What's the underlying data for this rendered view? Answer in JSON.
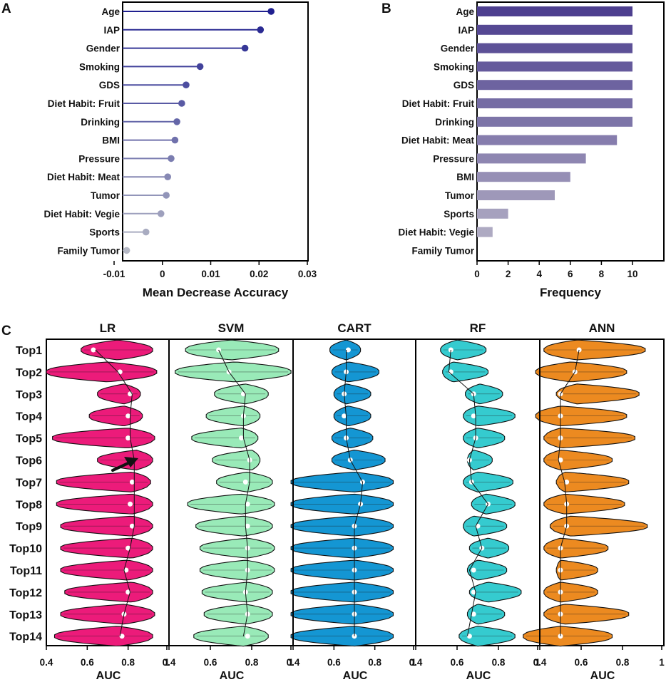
{
  "panel_labels": {
    "a": "A",
    "b": "B",
    "c": "C"
  },
  "chart_data": [
    {
      "type": "lollipop",
      "panel": "A",
      "categories": [
        "Age",
        "IAP",
        "Gender",
        "Smoking",
        "GDS",
        "Diet Habit: Fruit",
        "Drinking",
        "BMI",
        "Pressure",
        "Diet Habit: Meat",
        "Tumor",
        "Diet Habit: Vegie",
        "Sports",
        "Family Tumor"
      ],
      "values": [
        0.0225,
        0.0203,
        0.0171,
        0.0078,
        0.0049,
        0.004,
        0.003,
        0.0026,
        0.0018,
        0.0011,
        0.0008,
        -0.0003,
        -0.0034,
        -0.0074
      ],
      "xlabel": "Mean Decrease Accuracy",
      "xlim": [
        -0.01,
        0.03
      ],
      "xticks": [
        -0.01,
        0,
        0.01,
        0.02,
        0.03
      ],
      "xtick_labels": [
        "-0.01",
        "0",
        "0.01",
        "0.02",
        "0.03"
      ],
      "color_start": "#1f1f8f",
      "color_end": "#b5b8c5"
    },
    {
      "type": "bar",
      "panel": "B",
      "orientation": "horizontal",
      "categories": [
        "Age",
        "IAP",
        "Gender",
        "Smoking",
        "GDS",
        "Diet Habit: Fruit",
        "Drinking",
        "Diet Habit: Meat",
        "Pressure",
        "BMI",
        "Tumor",
        "Sports",
        "Diet Habit: Vegie",
        "Family Tumor"
      ],
      "values": [
        10,
        10,
        10,
        10,
        10,
        10,
        10,
        9,
        7,
        6,
        5,
        2,
        1,
        0
      ],
      "xlabel": "Frequency",
      "xlim": [
        0,
        10
      ],
      "xticks": [
        0,
        2,
        4,
        6,
        8,
        10
      ],
      "xtick_labels": [
        "0",
        "2",
        "4",
        "6",
        "8",
        "10"
      ],
      "color_start": "#4d3f8f",
      "color_end": "#b6b3c6"
    },
    {
      "type": "violin",
      "panel": "C",
      "rows": [
        "Top1",
        "Top2",
        "Top3",
        "Top4",
        "Top5",
        "Top6",
        "Top7",
        "Top8",
        "Top9",
        "Top10",
        "Top11",
        "Top12",
        "Top13",
        "Top14"
      ],
      "xlabel": "AUC",
      "xlim": [
        0.4,
        1.0
      ],
      "xticks": [
        0.4,
        0.6,
        0.8,
        1.0
      ],
      "xtick_labels": [
        "0.4",
        "0.6",
        "0.8",
        "1"
      ],
      "models": [
        {
          "name": "LR",
          "color": "#ec1b7a",
          "min": [
            0.57,
            0.4,
            0.65,
            0.61,
            0.43,
            0.65,
            0.45,
            0.45,
            0.47,
            0.47,
            0.47,
            0.49,
            0.47,
            0.44
          ],
          "max": [
            0.92,
            0.94,
            0.86,
            0.87,
            0.93,
            0.92,
            0.91,
            0.92,
            0.92,
            0.92,
            0.92,
            0.92,
            0.93,
            0.92
          ],
          "mode": [
            0.75,
            0.7,
            0.78,
            0.78,
            0.8,
            0.84,
            0.82,
            0.82,
            0.82,
            0.82,
            0.8,
            0.82,
            0.78,
            0.75
          ],
          "median": [
            0.63,
            0.76,
            0.81,
            0.8,
            0.8,
            0.82,
            0.82,
            0.81,
            0.82,
            0.8,
            0.79,
            0.8,
            0.78,
            0.77
          ],
          "mean": [
            0.64,
            0.75,
            0.82,
            0.81,
            0.81,
            0.83,
            0.83,
            0.83,
            0.83,
            0.81,
            0.78,
            0.81,
            0.78,
            0.76
          ]
        },
        {
          "name": "SVM",
          "color": "#99eab8",
          "min": [
            0.48,
            0.43,
            0.62,
            0.58,
            0.51,
            0.61,
            0.63,
            0.49,
            0.53,
            0.55,
            0.55,
            0.56,
            0.57,
            0.52
          ],
          "max": [
            0.93,
            0.99,
            0.88,
            0.84,
            0.83,
            0.84,
            0.9,
            0.91,
            0.9,
            0.91,
            0.91,
            0.9,
            0.9,
            0.88
          ],
          "mode": [
            0.7,
            0.72,
            0.77,
            0.76,
            0.75,
            0.8,
            0.78,
            0.75,
            0.76,
            0.78,
            0.77,
            0.78,
            0.77,
            0.76
          ],
          "median": [
            0.64,
            0.69,
            0.76,
            0.76,
            0.75,
            0.79,
            0.77,
            0.78,
            0.78,
            0.78,
            0.78,
            0.77,
            0.78,
            0.78
          ],
          "mean": [
            0.64,
            0.69,
            0.77,
            0.76,
            0.76,
            0.79,
            0.79,
            0.77,
            0.77,
            0.78,
            0.78,
            0.77,
            0.78,
            0.76
          ]
        },
        {
          "name": "CART",
          "color": "#1496d3",
          "min": [
            0.58,
            0.59,
            0.6,
            0.6,
            0.59,
            0.59,
            0.39,
            0.39,
            0.39,
            0.39,
            0.39,
            0.39,
            0.39,
            0.39
          ],
          "max": [
            0.73,
            0.82,
            0.78,
            0.78,
            0.79,
            0.85,
            0.89,
            0.89,
            0.89,
            0.89,
            0.89,
            0.89,
            0.89,
            0.89
          ],
          "mode": [
            0.66,
            0.67,
            0.66,
            0.67,
            0.68,
            0.7,
            0.7,
            0.7,
            0.7,
            0.7,
            0.7,
            0.7,
            0.7,
            0.7
          ],
          "median": [
            0.67,
            0.66,
            0.65,
            0.65,
            0.66,
            0.68,
            0.74,
            0.73,
            0.7,
            0.7,
            0.7,
            0.7,
            0.7,
            0.7
          ],
          "mean": [
            0.66,
            0.66,
            0.65,
            0.66,
            0.66,
            0.68,
            0.74,
            0.73,
            0.7,
            0.7,
            0.7,
            0.7,
            0.7,
            0.7
          ]
        },
        {
          "name": "RF",
          "color": "#35cbcf",
          "min": [
            0.52,
            0.53,
            0.64,
            0.63,
            0.63,
            0.65,
            0.63,
            0.67,
            0.63,
            0.66,
            0.65,
            0.66,
            0.65,
            0.61
          ],
          "max": [
            0.74,
            0.75,
            0.82,
            0.88,
            0.83,
            0.77,
            0.87,
            0.88,
            0.84,
            0.85,
            0.84,
            0.91,
            0.83,
            0.88
          ],
          "mode": [
            0.6,
            0.58,
            0.71,
            0.7,
            0.7,
            0.68,
            0.7,
            0.74,
            0.68,
            0.75,
            0.7,
            0.75,
            0.7,
            0.7
          ],
          "median": [
            0.57,
            0.57,
            0.68,
            0.68,
            0.69,
            0.66,
            0.67,
            0.75,
            0.7,
            0.72,
            0.68,
            0.68,
            0.68,
            0.66
          ],
          "mean": [
            0.57,
            0.56,
            0.68,
            0.69,
            0.69,
            0.66,
            0.67,
            0.75,
            0.69,
            0.72,
            0.66,
            0.69,
            0.67,
            0.65
          ]
        },
        {
          "name": "ANN",
          "color": "#ec8a20",
          "min": [
            0.42,
            0.38,
            0.48,
            0.38,
            0.42,
            0.42,
            0.48,
            0.42,
            0.45,
            0.42,
            0.48,
            0.42,
            0.42,
            0.32
          ],
          "max": [
            0.91,
            0.82,
            0.88,
            0.82,
            0.86,
            0.75,
            0.83,
            0.81,
            0.92,
            0.73,
            0.68,
            0.68,
            0.83,
            0.75
          ],
          "mode": [
            0.58,
            0.55,
            0.58,
            0.5,
            0.5,
            0.5,
            0.52,
            0.52,
            0.55,
            0.5,
            0.5,
            0.5,
            0.52,
            0.5
          ],
          "median": [
            0.59,
            0.57,
            0.5,
            0.5,
            0.5,
            0.5,
            0.53,
            0.53,
            0.53,
            0.5,
            0.5,
            0.5,
            0.5,
            0.5
          ],
          "mean": [
            0.59,
            0.57,
            0.5,
            0.5,
            0.5,
            0.49,
            0.52,
            0.53,
            0.53,
            0.5,
            0.5,
            0.5,
            0.5,
            0.5
          ]
        }
      ]
    }
  ]
}
